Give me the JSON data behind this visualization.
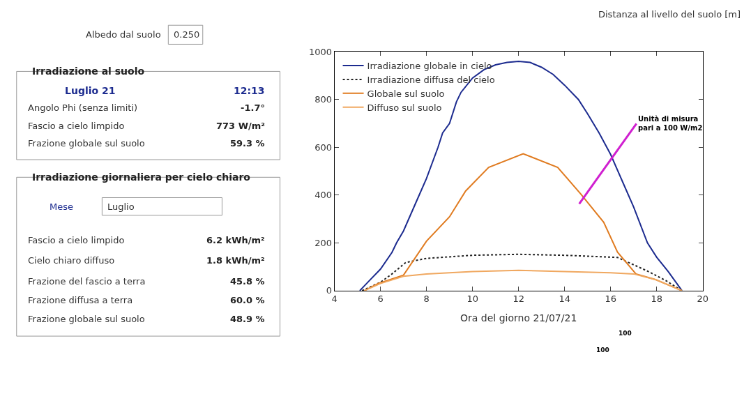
{
  "chart_data": {
    "type": "line",
    "xlabel": "Ora del giorno 21/07/21",
    "xlim": [
      4,
      20
    ],
    "xticks": [
      4,
      6,
      8,
      10,
      12,
      14,
      16,
      18,
      20
    ],
    "ylim": [
      0,
      1000
    ],
    "yticks": [
      0,
      200,
      400,
      600,
      800,
      1000
    ],
    "legend": "top left",
    "marker": "none",
    "series": [
      {
        "name": "Irradiazione globale in cielo",
        "color": "#1c2b8f",
        "line_style": "solid",
        "x": [
          5.1,
          5.5,
          6,
          6.5,
          6.7,
          7,
          7.5,
          8,
          8.5,
          8.7,
          9,
          9.3,
          9.5,
          10,
          10.5,
          11,
          11.5,
          12,
          12.5,
          13,
          13.5,
          14,
          14.6,
          15,
          15.5,
          16,
          16.5,
          17,
          17.6,
          18,
          18.5,
          19.1
        ],
        "values": [
          0,
          40,
          90,
          160,
          200,
          250,
          360,
          470,
          600,
          660,
          700,
          790,
          830,
          890,
          925,
          945,
          955,
          960,
          955,
          935,
          905,
          860,
          800,
          740,
          660,
          570,
          460,
          350,
          200,
          140,
          80,
          0
        ]
      },
      {
        "name": "Irradiazione diffusa del cielo",
        "color": "#222222",
        "line_style": "dotted",
        "x": [
          5.2,
          6,
          6.5,
          7.1,
          8,
          10,
          12,
          14,
          16.3,
          17.6,
          18.4,
          19.1
        ],
        "values": [
          0,
          35,
          70,
          118,
          135,
          148,
          152,
          148,
          139,
          82,
          42,
          0
        ]
      },
      {
        "name": "Globale sul suolo",
        "color": "#e07b20",
        "line_style": "solid",
        "x": [
          5.3,
          5.9,
          7.0,
          8.0,
          9.0,
          9.7,
          10.7,
          12.2,
          13.7,
          14.7,
          15.7,
          16.3,
          17.1,
          17.9,
          19.1
        ],
        "values": [
          0,
          30,
          65,
          207,
          309,
          417,
          516,
          573,
          516,
          405,
          286,
          161,
          70,
          48,
          0
        ]
      },
      {
        "name": "Diffuso sul suolo",
        "color": "#f0a860",
        "line_style": "solid",
        "x": [
          5.3,
          6,
          7,
          8,
          10,
          12,
          14,
          16,
          17,
          18,
          19.1
        ],
        "values": [
          0,
          30,
          60,
          70,
          80,
          85,
          80,
          75,
          70,
          45,
          0
        ]
      }
    ],
    "annotations": [
      "Distanza al livello del suolo [m]",
      "Albedo dal suolo",
      "0.250",
      "Irradiazione al suolo",
      "Luglio 21",
      "12:13",
      "Angolo Phi (senza limiti)",
      "-1.7°",
      "Fascio a cielo limpido",
      "773 W/m²",
      "Frazione globale sul suolo",
      "59.3 %",
      "Irradiazione giornaliera per cielo chiaro",
      "Mese",
      "Luglio",
      "Fascio a cielo limpido",
      "6.2 kWh/m²",
      "Cielo chiaro diffuso",
      "1.8 kWh/m²",
      "Frazione del fascio a terra",
      "45.8 %",
      "Frazione diffusa a terra",
      "60.0 %",
      "Frazione globale sul suolo",
      "48.9 %",
      "Unità di misura pari a 100 W/m2",
      "100",
      "100"
    ]
  }
}
